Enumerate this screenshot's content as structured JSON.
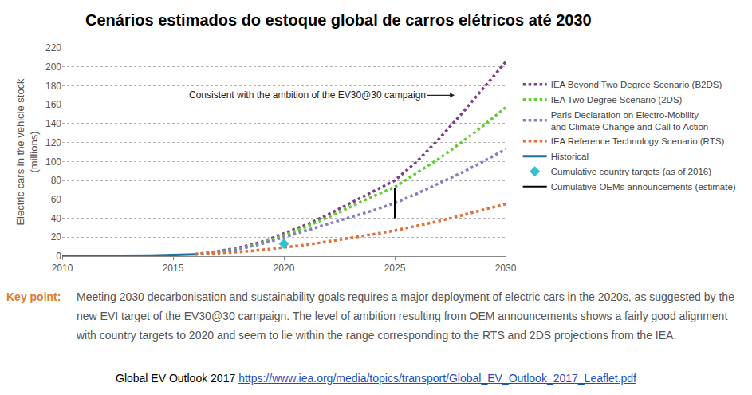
{
  "chart_data": {
    "type": "line",
    "title": "Cenários estimados do estoque global de carros elétricos até 2030",
    "y_label": "Electric cars in the vehicle stock\n(millions)",
    "xlim": [
      2010,
      2030
    ],
    "xticks": [
      2010,
      2015,
      2020,
      2025,
      2030
    ],
    "ylim": [
      0,
      220
    ],
    "yticks": [
      0,
      20,
      40,
      60,
      80,
      100,
      120,
      140,
      160,
      180,
      200,
      220
    ],
    "grid": "y",
    "legend": "right",
    "series": [
      {
        "name": "IEA Beyond Two Degree Scenario (B2DS)",
        "color": "#7b3f8c",
        "type": "line",
        "line_style": "dotted",
        "x": [
          2016,
          2017,
          2018,
          2019,
          2020,
          2021,
          2022,
          2023,
          2024,
          2025,
          2026,
          2027,
          2028,
          2029,
          2030
        ],
        "values": [
          2,
          5,
          9,
          15,
          24,
          33,
          44,
          56,
          68,
          80,
          100,
          124,
          150,
          177,
          205
        ]
      },
      {
        "name": "IEA Two Degree Scenario (2DS)",
        "color": "#66cc33",
        "type": "line",
        "line_style": "dotted",
        "x": [
          2016,
          2017,
          2018,
          2019,
          2020,
          2021,
          2022,
          2023,
          2024,
          2025,
          2026,
          2027,
          2028,
          2029,
          2030
        ],
        "values": [
          2,
          4.5,
          8,
          14,
          22,
          31,
          41,
          52,
          63,
          73,
          88,
          103,
          120,
          138,
          157
        ]
      },
      {
        "name": "Paris Declaration on Electro-Mobility\nand Climate Change and Call to Action",
        "color": "#8080c0",
        "type": "line",
        "line_style": "dotted",
        "x": [
          2016,
          2017,
          2018,
          2019,
          2020,
          2021,
          2022,
          2023,
          2024,
          2025,
          2026,
          2027,
          2028,
          2029,
          2030
        ],
        "values": [
          2,
          4,
          7.5,
          13,
          20,
          27,
          34,
          41,
          48,
          56,
          66,
          77,
          88,
          100,
          113
        ]
      },
      {
        "name": "IEA Reference Technology Scenario (RTS)",
        "color": "#e0703a",
        "type": "line",
        "line_style": "dotted",
        "x": [
          2016,
          2017,
          2018,
          2019,
          2020,
          2021,
          2022,
          2023,
          2024,
          2025,
          2026,
          2027,
          2028,
          2029,
          2030
        ],
        "values": [
          2,
          3,
          4.5,
          6.5,
          9,
          12,
          15.5,
          19,
          23,
          27,
          32,
          37,
          43,
          49,
          55
        ]
      },
      {
        "name": "Historical",
        "color": "#1f6f9f",
        "type": "line",
        "line_style": "solid",
        "x": [
          2010,
          2011,
          2012,
          2013,
          2014,
          2015,
          2016
        ],
        "values": [
          0,
          0.05,
          0.2,
          0.4,
          0.7,
          1.2,
          2
        ]
      },
      {
        "name": "Cumulative country targets (as of 2016)",
        "color": "#33c0d0",
        "type": "scatter",
        "marker": "diamond",
        "x": [
          2020
        ],
        "values": [
          13
        ]
      },
      {
        "name": "Cumulative OEMs announcements (estimate)",
        "color": "#000000",
        "type": "line",
        "line_style": "solid",
        "x": [
          2025,
          2025
        ],
        "values": [
          40,
          72
        ]
      }
    ],
    "annotations": [
      {
        "text": "Consistent with the ambition of the EV30@30 campaign",
        "x": 2027.7,
        "y": 170
      }
    ],
    "key_point": {
      "label": "Key point:",
      "text": "Meeting 2030 decarbonisation and sustainability goals requires a major deployment of electric cars in the 2020s, as suggested by the new EVI target of the EV30@30 campaign. The level of ambition resulting from OEM announcements shows a fairly good alignment with country targets to 2020 and seem to lie within the range corresponding to the RTS and 2DS projections from the IEA."
    },
    "source": {
      "text": "Global EV Outlook 2017",
      "url": "https://www.iea.org/media/topics/transport/Global_EV_Outlook_2017_Leaflet.pdf"
    }
  }
}
